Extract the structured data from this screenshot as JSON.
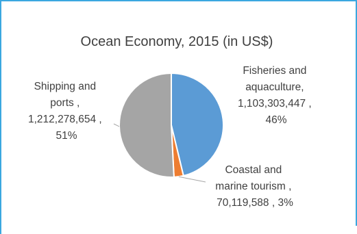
{
  "chart_data": {
    "type": "pie",
    "title": "Ocean Economy, 2015 (in US$)",
    "slices": [
      {
        "name": "Fisheries and aquaculture",
        "value": 1103303447,
        "percent": 46,
        "color": "#5b9bd5",
        "label_lines": [
          "Fisheries and",
          "aquaculture,",
          "1,103,303,447 ,",
          "46%"
        ]
      },
      {
        "name": "Coastal and marine tourism",
        "value": 70119588,
        "percent": 3,
        "color": "#ed7d31",
        "label_lines": [
          "Coastal and",
          "marine tourism ,",
          "70,119,588 , 3%"
        ]
      },
      {
        "name": "Shipping and ports",
        "value": 1212278654,
        "percent": 51,
        "color": "#a5a5a5",
        "label_lines": [
          "Shipping and",
          "ports ,",
          "1,212,278,654 ,",
          "51%"
        ]
      }
    ],
    "legend": "none"
  }
}
